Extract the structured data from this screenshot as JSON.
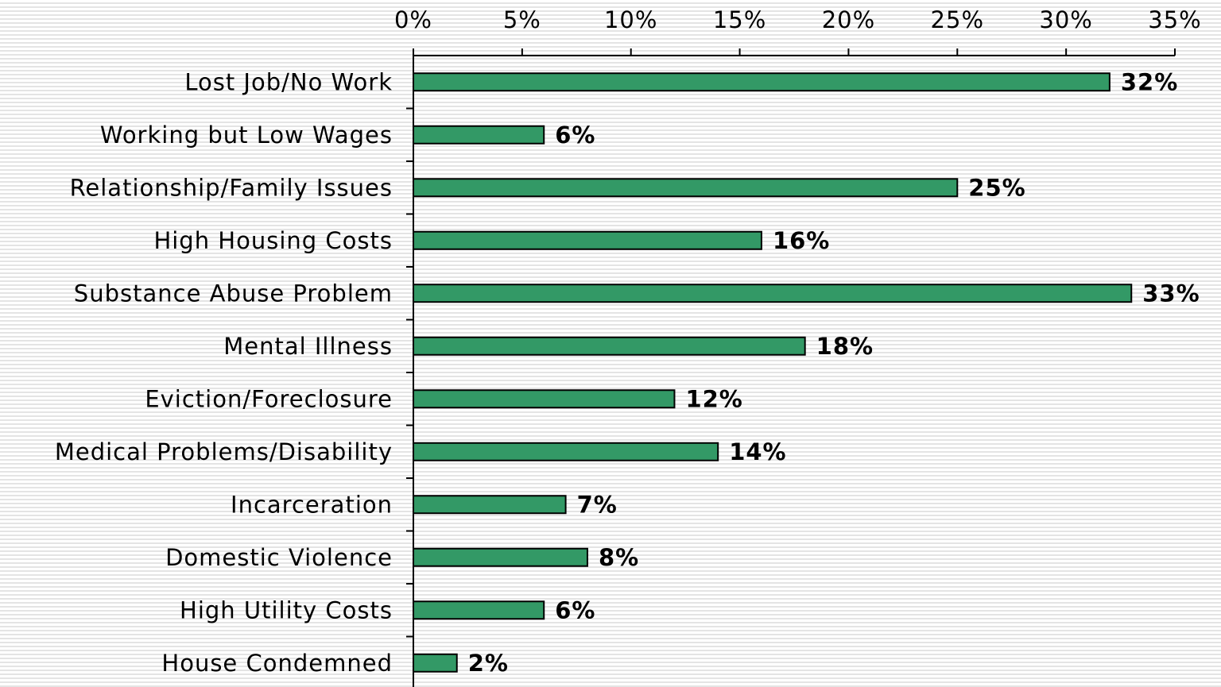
{
  "chart_data": {
    "type": "bar",
    "orientation": "horizontal",
    "categories": [
      "Lost Job/No Work",
      "Working but Low Wages",
      "Relationship/Family Issues",
      "High Housing Costs",
      "Substance Abuse Problem",
      "Mental Illness",
      "Eviction/Foreclosure",
      "Medical Problems/Disability",
      "Incarceration",
      "Domestic Violence",
      "High Utility Costs",
      "House Condemned"
    ],
    "values": [
      32,
      6,
      25,
      16,
      33,
      18,
      12,
      14,
      7,
      8,
      6,
      2
    ],
    "value_labels": [
      "32%",
      "6%",
      "25%",
      "16%",
      "33%",
      "18%",
      "12%",
      "14%",
      "7%",
      "8%",
      "6%",
      "2%"
    ],
    "color": "#339966",
    "xlim": [
      0,
      35
    ],
    "xticks": [
      {
        "value": 0,
        "label": "0%"
      },
      {
        "value": 5,
        "label": "5%"
      },
      {
        "value": 10,
        "label": "10%"
      },
      {
        "value": 15,
        "label": "15%"
      },
      {
        "value": 20,
        "label": "20%"
      },
      {
        "value": 25,
        "label": "25%"
      },
      {
        "value": 30,
        "label": "30%"
      },
      {
        "value": 35,
        "label": "35%"
      }
    ],
    "grid": false
  }
}
